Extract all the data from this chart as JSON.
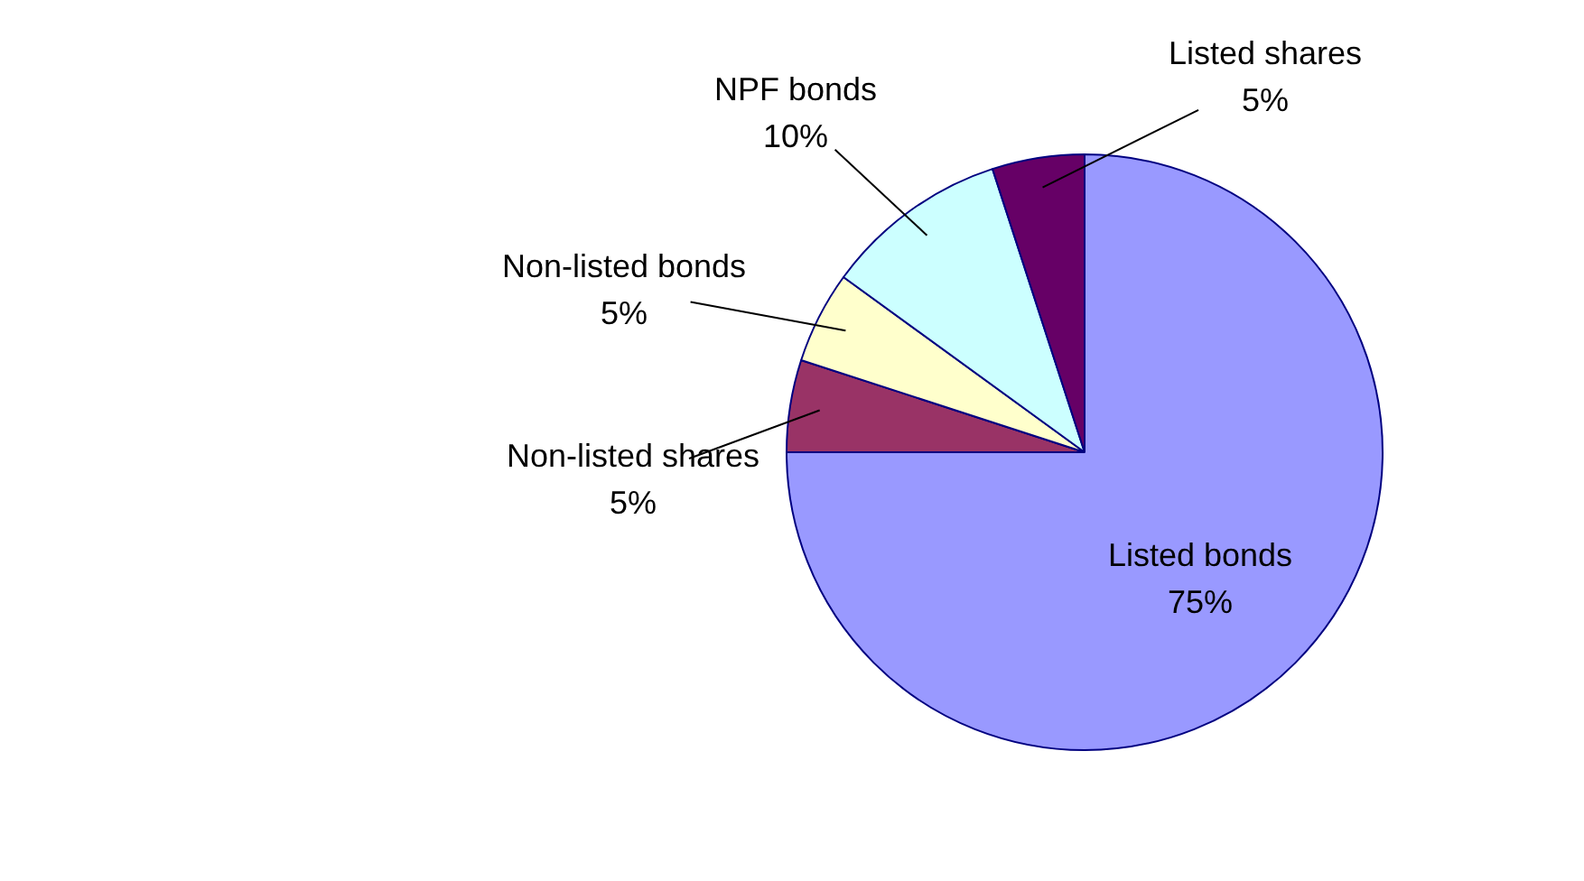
{
  "chart_data": {
    "type": "pie",
    "categories": [
      "Listed bonds",
      "Non-listed shares",
      "Non-listed bonds",
      "NPF bonds",
      "Listed shares"
    ],
    "values": [
      75,
      5,
      5,
      10,
      5
    ],
    "value_labels": [
      "75%",
      "5%",
      "5%",
      "10%",
      "5%"
    ],
    "colors": [
      "#9999ff",
      "#993366",
      "#ffffcc",
      "#ccffff",
      "#660066"
    ]
  }
}
